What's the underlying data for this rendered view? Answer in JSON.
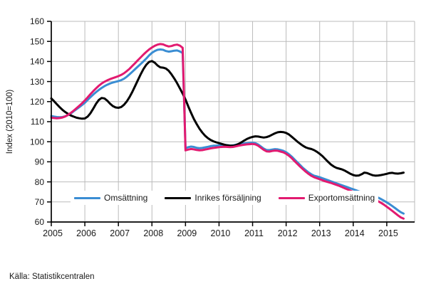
{
  "figure": {
    "y_axis_title": "Index (2010=100)",
    "source": "Källa: Statistikcentralen"
  },
  "chart_data": {
    "type": "line",
    "title": "",
    "xlabel": "",
    "ylabel": "Index (2010=100)",
    "source": "Källa: Statistikcentralen",
    "grid": true,
    "legend_position": "inside-bottom-left",
    "ylim": [
      60,
      160
    ],
    "ytick_step": 10,
    "xlim": [
      2005,
      2015.83
    ],
    "x_tick_labels": [
      "2005",
      "2006",
      "2007",
      "2008",
      "2009",
      "2010",
      "2011",
      "2012",
      "2013",
      "2014",
      "2015"
    ],
    "x_monthly_start": "2005-01",
    "x_monthly_step": 1,
    "axis_color": "#000000",
    "grid_color": "#bbbbbb",
    "series": [
      {
        "name": "Omsättning",
        "color": "#3a8dd3",
        "values": [
          112.8,
          112.5,
          112.3,
          112.2,
          112.3,
          112.7,
          113.3,
          114.1,
          115.2,
          116.2,
          117.2,
          118.3,
          119.4,
          120.8,
          122.2,
          123.5,
          124.7,
          125.8,
          126.8,
          127.7,
          128.4,
          129.0,
          129.5,
          129.9,
          130.2,
          130.7,
          131.4,
          132.4,
          133.6,
          134.9,
          136.2,
          137.5,
          138.8,
          140.1,
          141.5,
          143.0,
          144.3,
          145.2,
          145.8,
          146.0,
          145.8,
          145.2,
          144.9,
          145.1,
          145.4,
          145.5,
          145.0,
          144.2,
          96.8,
          97.3,
          97.6,
          97.4,
          97.0,
          96.8,
          96.9,
          97.2,
          97.5,
          97.8,
          98.0,
          98.1,
          98.2,
          98.3,
          98.4,
          98.3,
          98.1,
          98.2,
          98.5,
          98.8,
          99.0,
          99.2,
          99.3,
          99.4,
          99.5,
          99.3,
          98.6,
          97.6,
          96.6,
          95.9,
          95.8,
          96.1,
          96.3,
          96.2,
          95.9,
          95.5,
          94.8,
          93.8,
          92.6,
          91.2,
          89.8,
          88.4,
          87.0,
          85.8,
          84.7,
          83.8,
          83.1,
          82.7,
          82.3,
          81.8,
          81.3,
          80.8,
          80.3,
          79.8,
          79.3,
          78.8,
          78.3,
          77.8,
          77.3,
          76.8,
          76.3,
          75.8,
          75.3,
          74.9,
          74.5,
          74.2,
          73.8,
          73.3,
          72.7,
          72.1,
          71.4,
          70.6,
          69.8,
          68.9,
          67.9,
          66.9,
          65.9,
          64.9,
          64.2
        ]
      },
      {
        "name": "Inrikes försäljning",
        "color": "#000000",
        "values": [
          121.6,
          120.2,
          118.7,
          117.2,
          115.9,
          114.8,
          113.9,
          113.1,
          112.5,
          112.0,
          111.7,
          111.5,
          111.6,
          112.5,
          114.2,
          116.5,
          118.9,
          120.8,
          121.8,
          121.6,
          120.5,
          119.0,
          117.8,
          117.1,
          116.9,
          117.3,
          118.4,
          120.1,
          122.3,
          124.9,
          127.8,
          130.8,
          133.7,
          136.3,
          138.4,
          139.8,
          140.2,
          139.4,
          138.0,
          137.1,
          136.9,
          136.5,
          135.4,
          133.6,
          131.5,
          129.2,
          126.6,
          124.0,
          121.0,
          117.6,
          114.4,
          111.4,
          108.8,
          106.5,
          104.6,
          103.0,
          101.8,
          100.9,
          100.2,
          99.7,
          99.3,
          98.9,
          98.5,
          98.2,
          98.0,
          98.0,
          98.3,
          98.9,
          99.7,
          100.6,
          101.4,
          102.0,
          102.4,
          102.7,
          102.6,
          102.3,
          102.1,
          102.3,
          102.8,
          103.5,
          104.2,
          104.7,
          104.9,
          104.8,
          104.4,
          103.6,
          102.5,
          101.3,
          100.1,
          99.0,
          98.0,
          97.2,
          96.7,
          96.4,
          95.8,
          95.0,
          94.0,
          92.8,
          91.4,
          90.0,
          88.7,
          87.7,
          87.0,
          86.6,
          86.2,
          85.6,
          84.8,
          84.0,
          83.4,
          83.1,
          83.2,
          83.8,
          84.6,
          84.4,
          83.8,
          83.3,
          83.1,
          83.2,
          83.4,
          83.7,
          84.0,
          84.4,
          84.5,
          84.2,
          84.1,
          84.3,
          84.6
        ]
      },
      {
        "name": "Exportomsättning",
        "color": "#e21a70",
        "values": [
          112.0,
          111.8,
          111.7,
          111.8,
          112.1,
          112.6,
          113.4,
          114.4,
          115.5,
          116.7,
          117.9,
          119.2,
          120.6,
          122.1,
          123.7,
          125.2,
          126.6,
          127.9,
          129.0,
          129.9,
          130.6,
          131.2,
          131.7,
          132.2,
          132.7,
          133.3,
          134.1,
          135.2,
          136.4,
          137.8,
          139.2,
          140.7,
          142.1,
          143.5,
          144.8,
          146.0,
          147.0,
          147.8,
          148.4,
          148.7,
          148.5,
          147.9,
          147.5,
          147.7,
          148.2,
          148.4,
          147.9,
          146.8,
          95.7,
          96.1,
          96.4,
          96.2,
          95.9,
          95.7,
          95.8,
          96.1,
          96.4,
          96.7,
          96.9,
          97.1,
          97.3,
          97.4,
          97.5,
          97.4,
          97.3,
          97.4,
          97.7,
          98.0,
          98.3,
          98.5,
          98.7,
          98.8,
          98.9,
          98.7,
          98.0,
          97.0,
          96.0,
          95.2,
          95.1,
          95.4,
          95.6,
          95.5,
          95.1,
          94.7,
          94.0,
          93.0,
          91.8,
          90.4,
          89.0,
          87.6,
          86.3,
          85.1,
          84.0,
          83.0,
          82.3,
          81.8,
          81.3,
          80.8,
          80.3,
          79.9,
          79.5,
          79.0,
          78.5,
          78.0,
          77.4,
          76.8,
          76.2,
          75.6,
          75.0,
          74.5,
          74.0,
          73.5,
          73.1,
          72.7,
          72.2,
          71.6,
          71.0,
          70.3,
          69.5,
          68.6,
          67.6,
          66.6,
          65.5,
          64.4,
          63.3,
          62.3,
          61.7
        ]
      }
    ]
  }
}
